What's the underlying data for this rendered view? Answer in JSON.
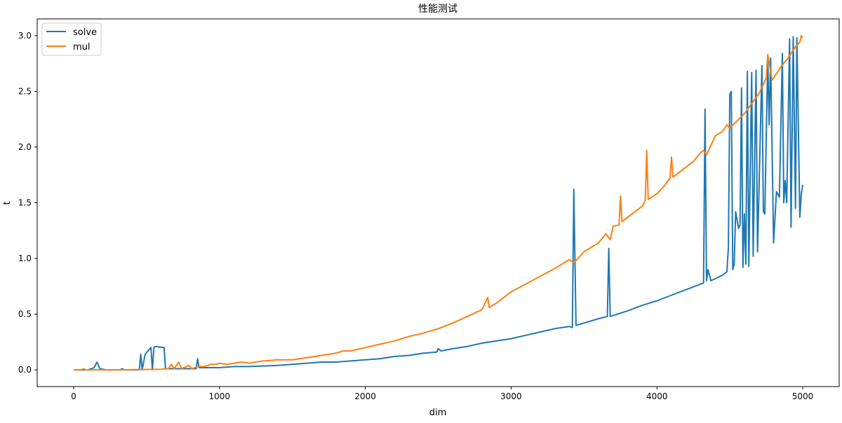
{
  "chart_data": {
    "type": "line",
    "title": "性能测试",
    "xlabel": "dim",
    "ylabel": "t",
    "xlim": [
      -250,
      5250
    ],
    "ylim": [
      -0.15,
      3.15
    ],
    "xticks": [
      0,
      1000,
      2000,
      3000,
      4000,
      5000
    ],
    "xtick_labels": [
      "0",
      "1000",
      "2000",
      "3000",
      "4000",
      "5000"
    ],
    "yticks": [
      0,
      0.5,
      1,
      1.5,
      2,
      2.5,
      3
    ],
    "ytick_labels": [
      "0.0",
      "0.5",
      "1.0",
      "1.5",
      "2.0",
      "2.5",
      "3.0"
    ],
    "grid": false,
    "legend_placement": "top-left",
    "series": [
      {
        "name": "solve",
        "color": "#1f77b4",
        "points": [
          [
            0,
            0
          ],
          [
            100,
            0
          ],
          [
            140,
            0.02
          ],
          [
            160,
            0.07
          ],
          [
            180,
            0.01
          ],
          [
            220,
            0
          ],
          [
            320,
            0
          ],
          [
            330,
            0.01
          ],
          [
            350,
            0
          ],
          [
            450,
            0
          ],
          [
            460,
            0.14
          ],
          [
            470,
            0
          ],
          [
            490,
            0.14
          ],
          [
            530,
            0.2
          ],
          [
            540,
            0
          ],
          [
            550,
            0.2
          ],
          [
            560,
            0.21
          ],
          [
            620,
            0.2
          ],
          [
            630,
            0.01
          ],
          [
            700,
            0.01
          ],
          [
            800,
            0.01
          ],
          [
            840,
            0.01
          ],
          [
            850,
            0.1
          ],
          [
            860,
            0.02
          ],
          [
            1000,
            0.02
          ],
          [
            1100,
            0.03
          ],
          [
            1200,
            0.03
          ],
          [
            1400,
            0.04
          ],
          [
            1500,
            0.05
          ],
          [
            1600,
            0.06
          ],
          [
            1700,
            0.07
          ],
          [
            1800,
            0.07
          ],
          [
            1900,
            0.08
          ],
          [
            2000,
            0.09
          ],
          [
            2100,
            0.1
          ],
          [
            2200,
            0.12
          ],
          [
            2300,
            0.13
          ],
          [
            2400,
            0.15
          ],
          [
            2490,
            0.16
          ],
          [
            2500,
            0.19
          ],
          [
            2520,
            0.17
          ],
          [
            2600,
            0.19
          ],
          [
            2700,
            0.21
          ],
          [
            2800,
            0.24
          ],
          [
            2900,
            0.26
          ],
          [
            3000,
            0.28
          ],
          [
            3100,
            0.31
          ],
          [
            3200,
            0.34
          ],
          [
            3300,
            0.37
          ],
          [
            3400,
            0.39
          ],
          [
            3420,
            0.38
          ],
          [
            3430,
            1.62
          ],
          [
            3445,
            0.4
          ],
          [
            3500,
            0.42
          ],
          [
            3600,
            0.46
          ],
          [
            3660,
            0.48
          ],
          [
            3670,
            1.09
          ],
          [
            3680,
            0.48
          ],
          [
            3800,
            0.53
          ],
          [
            3900,
            0.58
          ],
          [
            4000,
            0.62
          ],
          [
            4100,
            0.67
          ],
          [
            4200,
            0.72
          ],
          [
            4300,
            0.77
          ],
          [
            4320,
            0.78
          ],
          [
            4330,
            2.34
          ],
          [
            4340,
            0.8
          ],
          [
            4350,
            0.9
          ],
          [
            4370,
            0.8
          ],
          [
            4450,
            0.85
          ],
          [
            4480,
            0.88
          ],
          [
            4490,
            1.1
          ],
          [
            4500,
            2.47
          ],
          [
            4510,
            2.5
          ],
          [
            4520,
            0.9
          ],
          [
            4530,
            0.95
          ],
          [
            4540,
            1.42
          ],
          [
            4560,
            1.27
          ],
          [
            4570,
            1.3
          ],
          [
            4580,
            2.53
          ],
          [
            4590,
            0.92
          ],
          [
            4600,
            1.4
          ],
          [
            4610,
            0.95
          ],
          [
            4620,
            2.68
          ],
          [
            4630,
            0.93
          ],
          [
            4650,
            2.67
          ],
          [
            4660,
            1.02
          ],
          [
            4680,
            2.69
          ],
          [
            4690,
            1.06
          ],
          [
            4720,
            2.73
          ],
          [
            4730,
            1.42
          ],
          [
            4740,
            1.4
          ],
          [
            4760,
            2.8
          ],
          [
            4770,
            2.2
          ],
          [
            4780,
            2.8
          ],
          [
            4800,
            1.14
          ],
          [
            4820,
            1.6
          ],
          [
            4840,
            1.55
          ],
          [
            4860,
            2.84
          ],
          [
            4870,
            1.5
          ],
          [
            4880,
            1.7
          ],
          [
            4890,
            1.5
          ],
          [
            4910,
            2.97
          ],
          [
            4920,
            1.28
          ],
          [
            4935,
            2.99
          ],
          [
            4950,
            1.45
          ],
          [
            4960,
            2.98
          ],
          [
            4980,
            1.37
          ],
          [
            4990,
            1.58
          ],
          [
            5000,
            1.66
          ]
        ]
      },
      {
        "name": "mul",
        "color": "#ff7f0e",
        "points": [
          [
            0,
            0
          ],
          [
            50,
            0
          ],
          [
            70,
            0.01
          ],
          [
            80,
            0
          ],
          [
            300,
            0
          ],
          [
            600,
            0.005
          ],
          [
            650,
            0.01
          ],
          [
            670,
            0.05
          ],
          [
            690,
            0.01
          ],
          [
            720,
            0.07
          ],
          [
            740,
            0.01
          ],
          [
            790,
            0.04
          ],
          [
            810,
            0.01
          ],
          [
            850,
            0.03
          ],
          [
            900,
            0.03
          ],
          [
            940,
            0.05
          ],
          [
            980,
            0.05
          ],
          [
            1000,
            0.06
          ],
          [
            1050,
            0.05
          ],
          [
            1100,
            0.06
          ],
          [
            1150,
            0.07
          ],
          [
            1200,
            0.06
          ],
          [
            1250,
            0.07
          ],
          [
            1300,
            0.08
          ],
          [
            1400,
            0.09
          ],
          [
            1500,
            0.09
          ],
          [
            1600,
            0.11
          ],
          [
            1700,
            0.13
          ],
          [
            1800,
            0.15
          ],
          [
            1850,
            0.17
          ],
          [
            1900,
            0.17
          ],
          [
            2000,
            0.2
          ],
          [
            2100,
            0.23
          ],
          [
            2200,
            0.26
          ],
          [
            2300,
            0.3
          ],
          [
            2400,
            0.33
          ],
          [
            2500,
            0.37
          ],
          [
            2600,
            0.42
          ],
          [
            2700,
            0.48
          ],
          [
            2800,
            0.54
          ],
          [
            2840,
            0.65
          ],
          [
            2850,
            0.56
          ],
          [
            2900,
            0.6
          ],
          [
            3000,
            0.7
          ],
          [
            3100,
            0.77
          ],
          [
            3200,
            0.84
          ],
          [
            3300,
            0.91
          ],
          [
            3400,
            0.99
          ],
          [
            3430,
            0.96
          ],
          [
            3500,
            1.06
          ],
          [
            3600,
            1.14
          ],
          [
            3650,
            1.22
          ],
          [
            3680,
            1.17
          ],
          [
            3700,
            1.29
          ],
          [
            3740,
            1.3
          ],
          [
            3750,
            1.56
          ],
          [
            3760,
            1.33
          ],
          [
            3800,
            1.37
          ],
          [
            3900,
            1.47
          ],
          [
            3920,
            1.52
          ],
          [
            3930,
            1.97
          ],
          [
            3940,
            1.53
          ],
          [
            4000,
            1.58
          ],
          [
            4050,
            1.65
          ],
          [
            4090,
            1.72
          ],
          [
            4100,
            1.91
          ],
          [
            4110,
            1.73
          ],
          [
            4200,
            1.82
          ],
          [
            4250,
            1.87
          ],
          [
            4300,
            1.95
          ],
          [
            4320,
            1.97
          ],
          [
            4340,
            1.93
          ],
          [
            4400,
            2.1
          ],
          [
            4450,
            2.14
          ],
          [
            4480,
            2.2
          ],
          [
            4500,
            2.17
          ],
          [
            4600,
            2.3
          ],
          [
            4700,
            2.48
          ],
          [
            4750,
            2.62
          ],
          [
            4760,
            2.83
          ],
          [
            4790,
            2.6
          ],
          [
            4850,
            2.72
          ],
          [
            4900,
            2.8
          ],
          [
            4950,
            2.9
          ],
          [
            4980,
            2.94
          ],
          [
            4990,
            3.0
          ],
          [
            5000,
            2.98
          ]
        ]
      }
    ]
  }
}
